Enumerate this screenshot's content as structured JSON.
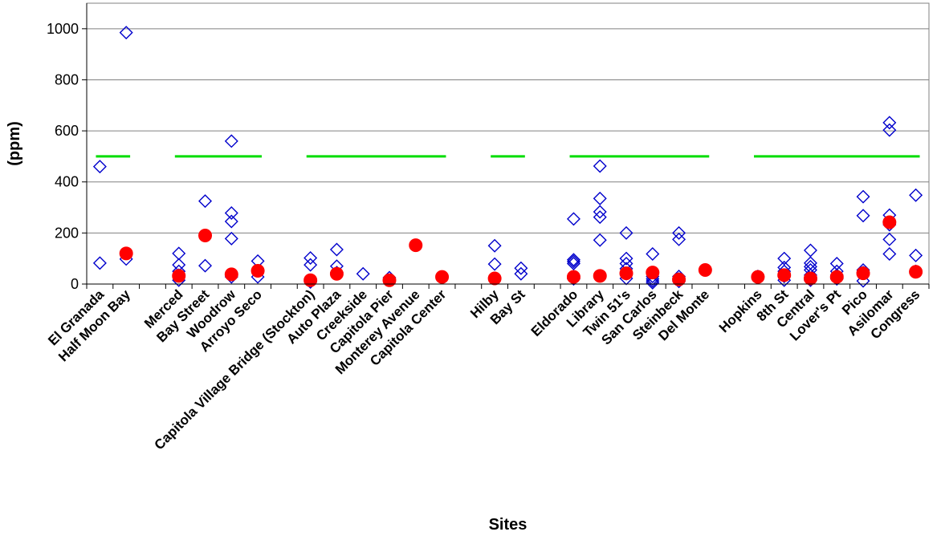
{
  "chart_data": {
    "type": "scatter",
    "title": "",
    "xlabel": "Sites",
    "ylabel": "(ppm)",
    "ylim": [
      0,
      1100
    ],
    "yticks": [
      0,
      200,
      400,
      600,
      800,
      1000
    ],
    "grid": "horizontal",
    "legend": "none",
    "categories": [
      "El Granada",
      "Half Moon Bay",
      "",
      "Merced",
      "Bay Street",
      "Woodrow",
      "Arroyo Seco",
      "",
      "Capitola Village Bridge (Stockton)",
      "Auto Plaza",
      "Creekside",
      "Capitola Pier",
      "Monterey Avenue",
      "Capitola Center",
      "",
      "Hilby",
      "Bay St",
      "",
      "Eldorado",
      "Library",
      "Twin 51's",
      "San Carlos",
      "Steinbeck",
      "Del Monte",
      "",
      "Hopkins",
      "8th St",
      "Central",
      "Lover's Pt",
      "Pico",
      "Asilomar",
      "Congress"
    ],
    "series": [
      {
        "marker": "open-diamond",
        "color": "#0000cc",
        "points": [
          {
            "x": 0,
            "y": 460
          },
          {
            "x": 0,
            "y": 82
          },
          {
            "x": 1,
            "y": 985
          },
          {
            "x": 1,
            "y": 98
          },
          {
            "x": 3,
            "y": 120
          },
          {
            "x": 3,
            "y": 75
          },
          {
            "x": 3,
            "y": 50
          },
          {
            "x": 3,
            "y": 35
          },
          {
            "x": 3,
            "y": 15
          },
          {
            "x": 4,
            "y": 325
          },
          {
            "x": 4,
            "y": 72
          },
          {
            "x": 5,
            "y": 560
          },
          {
            "x": 5,
            "y": 278
          },
          {
            "x": 5,
            "y": 245
          },
          {
            "x": 5,
            "y": 178
          },
          {
            "x": 5,
            "y": 28
          },
          {
            "x": 6,
            "y": 90
          },
          {
            "x": 6,
            "y": 28
          },
          {
            "x": 8,
            "y": 102
          },
          {
            "x": 8,
            "y": 75
          },
          {
            "x": 8,
            "y": 8
          },
          {
            "x": 9,
            "y": 135
          },
          {
            "x": 9,
            "y": 70
          },
          {
            "x": 9,
            "y": 45
          },
          {
            "x": 10,
            "y": 40
          },
          {
            "x": 11,
            "y": 25
          },
          {
            "x": 15,
            "y": 150
          },
          {
            "x": 15,
            "y": 78
          },
          {
            "x": 16,
            "y": 62
          },
          {
            "x": 16,
            "y": 40
          },
          {
            "x": 18,
            "y": 255
          },
          {
            "x": 18,
            "y": 95
          },
          {
            "x": 18,
            "y": 88
          },
          {
            "x": 18,
            "y": 80
          },
          {
            "x": 18,
            "y": 20
          },
          {
            "x": 19,
            "y": 462
          },
          {
            "x": 19,
            "y": 335
          },
          {
            "x": 19,
            "y": 283
          },
          {
            "x": 19,
            "y": 262
          },
          {
            "x": 19,
            "y": 172
          },
          {
            "x": 20,
            "y": 200
          },
          {
            "x": 20,
            "y": 100
          },
          {
            "x": 20,
            "y": 80
          },
          {
            "x": 20,
            "y": 60
          },
          {
            "x": 20,
            "y": 40
          },
          {
            "x": 20,
            "y": 22
          },
          {
            "x": 21,
            "y": 118
          },
          {
            "x": 21,
            "y": 30
          },
          {
            "x": 21,
            "y": 20
          },
          {
            "x": 21,
            "y": 12
          },
          {
            "x": 21,
            "y": 5
          },
          {
            "x": 22,
            "y": 200
          },
          {
            "x": 22,
            "y": 175
          },
          {
            "x": 22,
            "y": 30
          },
          {
            "x": 22,
            "y": 20
          },
          {
            "x": 22,
            "y": 10
          },
          {
            "x": 25,
            "y": 30
          },
          {
            "x": 26,
            "y": 100
          },
          {
            "x": 26,
            "y": 65
          },
          {
            "x": 26,
            "y": 50
          },
          {
            "x": 26,
            "y": 30
          },
          {
            "x": 26,
            "y": 15
          },
          {
            "x": 27,
            "y": 132
          },
          {
            "x": 27,
            "y": 82
          },
          {
            "x": 27,
            "y": 68
          },
          {
            "x": 27,
            "y": 55
          },
          {
            "x": 27,
            "y": 35
          },
          {
            "x": 27,
            "y": 15
          },
          {
            "x": 28,
            "y": 80
          },
          {
            "x": 28,
            "y": 50
          },
          {
            "x": 28,
            "y": 35
          },
          {
            "x": 28,
            "y": 25
          },
          {
            "x": 28,
            "y": 20
          },
          {
            "x": 29,
            "y": 342
          },
          {
            "x": 29,
            "y": 268
          },
          {
            "x": 29,
            "y": 55
          },
          {
            "x": 29,
            "y": 45
          },
          {
            "x": 29,
            "y": 12
          },
          {
            "x": 30,
            "y": 632
          },
          {
            "x": 30,
            "y": 603
          },
          {
            "x": 30,
            "y": 270
          },
          {
            "x": 30,
            "y": 232
          },
          {
            "x": 30,
            "y": 175
          },
          {
            "x": 30,
            "y": 118
          },
          {
            "x": 31,
            "y": 348
          },
          {
            "x": 31,
            "y": 112
          },
          {
            "x": 31,
            "y": 50
          }
        ]
      },
      {
        "marker": "filled-circle",
        "color": "#ff0000",
        "points": [
          {
            "x": 1,
            "y": 120
          },
          {
            "x": 3,
            "y": 32
          },
          {
            "x": 4,
            "y": 190
          },
          {
            "x": 5,
            "y": 38
          },
          {
            "x": 6,
            "y": 52
          },
          {
            "x": 8,
            "y": 15
          },
          {
            "x": 9,
            "y": 40
          },
          {
            "x": 11,
            "y": 15
          },
          {
            "x": 12,
            "y": 152
          },
          {
            "x": 13,
            "y": 28
          },
          {
            "x": 15,
            "y": 22
          },
          {
            "x": 18,
            "y": 28
          },
          {
            "x": 19,
            "y": 32
          },
          {
            "x": 20,
            "y": 42
          },
          {
            "x": 21,
            "y": 45
          },
          {
            "x": 22,
            "y": 18
          },
          {
            "x": 23,
            "y": 55
          },
          {
            "x": 25,
            "y": 28
          },
          {
            "x": 26,
            "y": 35
          },
          {
            "x": 27,
            "y": 22
          },
          {
            "x": 28,
            "y": 28
          },
          {
            "x": 29,
            "y": 42
          },
          {
            "x": 30,
            "y": 242
          },
          {
            "x": 31,
            "y": 48
          }
        ]
      }
    ],
    "threshold_lines": [
      {
        "value": 500,
        "x_from": 0,
        "x_to": 1,
        "color": "#00dd00"
      },
      {
        "value": 500,
        "x_from": 3,
        "x_to": 6,
        "color": "#00dd00"
      },
      {
        "value": 500,
        "x_from": 8,
        "x_to": 13,
        "color": "#00dd00"
      },
      {
        "value": 500,
        "x_from": 15,
        "x_to": 16,
        "color": "#00dd00"
      },
      {
        "value": 500,
        "x_from": 18,
        "x_to": 23,
        "color": "#00dd00"
      },
      {
        "value": 500,
        "x_from": 25,
        "x_to": 31,
        "color": "#00dd00"
      }
    ]
  }
}
